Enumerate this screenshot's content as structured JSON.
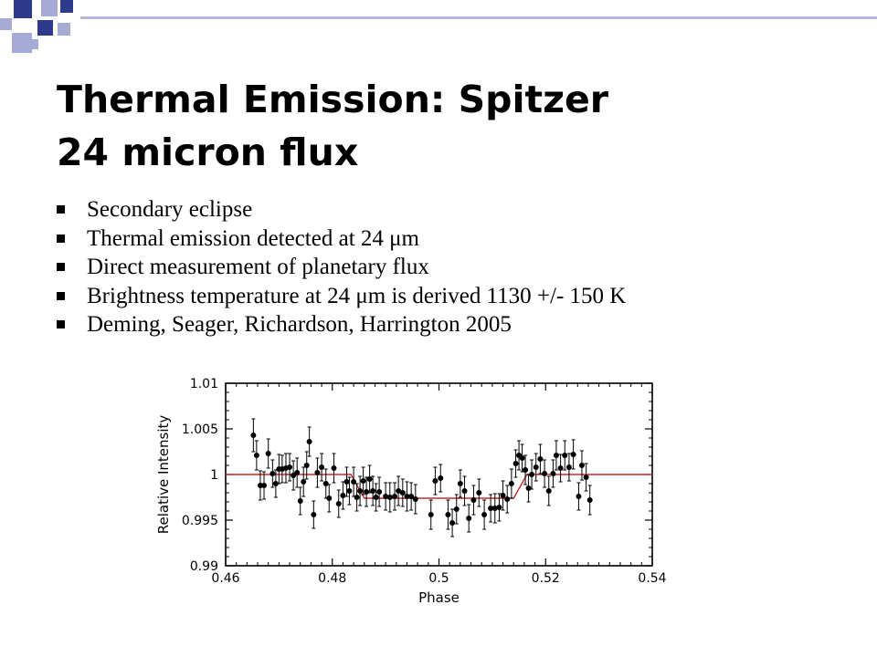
{
  "theme": {
    "accent": "#2e3a8c",
    "accent_light": "#a6abd6",
    "rule_color": "#b3b8dc",
    "fit_color": "#cc2b2b"
  },
  "slide": {
    "title_line1": "Thermal Emission: Spitzer",
    "title_line2": "24 micron flux",
    "bullets": [
      "Secondary eclipse",
      "Thermal emission detected at 24 μm",
      "Direct measurement of planetary flux",
      "Brightness temperature at 24 μm is derived 1130 +/- 150 K",
      "Deming, Seager, Richardson, Harrington 2005"
    ]
  },
  "chart_data": {
    "type": "scatter",
    "title": "",
    "xlabel": "Phase",
    "ylabel": "Relative Intensity",
    "xlim": [
      0.46,
      0.54
    ],
    "ylim": [
      0.99,
      1.01
    ],
    "x_ticks": [
      "0.46",
      "0.48",
      "0.5",
      "0.52",
      "0.54"
    ],
    "y_ticks": [
      "0.99",
      "0.995",
      "1",
      "1.005",
      "1.01"
    ],
    "grid": false,
    "points": [
      {
        "x": 0.4652,
        "y": 1.0043,
        "err": 0.0018
      },
      {
        "x": 0.4658,
        "y": 1.0021,
        "err": 0.0016
      },
      {
        "x": 0.4665,
        "y": 0.9988,
        "err": 0.0016
      },
      {
        "x": 0.4672,
        "y": 0.9988,
        "err": 0.0015
      },
      {
        "x": 0.468,
        "y": 1.0023,
        "err": 0.0016
      },
      {
        "x": 0.4688,
        "y": 1.0001,
        "err": 0.0015
      },
      {
        "x": 0.4694,
        "y": 0.999,
        "err": 0.0015
      },
      {
        "x": 0.47,
        "y": 1.0006,
        "err": 0.0016
      },
      {
        "x": 0.4706,
        "y": 1.0006,
        "err": 0.0015
      },
      {
        "x": 0.4713,
        "y": 1.0007,
        "err": 0.0016
      },
      {
        "x": 0.472,
        "y": 1.0008,
        "err": 0.0015
      },
      {
        "x": 0.4727,
        "y": 0.9999,
        "err": 0.0016
      },
      {
        "x": 0.4734,
        "y": 1.0002,
        "err": 0.0016
      },
      {
        "x": 0.474,
        "y": 0.9971,
        "err": 0.0015
      },
      {
        "x": 0.4746,
        "y": 0.9992,
        "err": 0.0016
      },
      {
        "x": 0.4752,
        "y": 1.001,
        "err": 0.0015
      },
      {
        "x": 0.4757,
        "y": 1.0036,
        "err": 0.0016
      },
      {
        "x": 0.4765,
        "y": 0.9956,
        "err": 0.0015
      },
      {
        "x": 0.4772,
        "y": 1.0002,
        "err": 0.0016
      },
      {
        "x": 0.478,
        "y": 1.0008,
        "err": 0.0015
      },
      {
        "x": 0.4788,
        "y": 0.999,
        "err": 0.0016
      },
      {
        "x": 0.4794,
        "y": 0.9974,
        "err": 0.0015
      },
      {
        "x": 0.4803,
        "y": 1.0007,
        "err": 0.0016
      },
      {
        "x": 0.4812,
        "y": 0.9968,
        "err": 0.0015
      },
      {
        "x": 0.482,
        "y": 0.9977,
        "err": 0.0015
      },
      {
        "x": 0.4827,
        "y": 0.9992,
        "err": 0.0016
      },
      {
        "x": 0.4832,
        "y": 0.9982,
        "err": 0.0015
      },
      {
        "x": 0.484,
        "y": 0.9992,
        "err": 0.0016
      },
      {
        "x": 0.4846,
        "y": 0.9975,
        "err": 0.0015
      },
      {
        "x": 0.4852,
        "y": 0.9982,
        "err": 0.0016
      },
      {
        "x": 0.4858,
        "y": 0.9993,
        "err": 0.0015
      },
      {
        "x": 0.4864,
        "y": 0.9981,
        "err": 0.0016
      },
      {
        "x": 0.487,
        "y": 0.9995,
        "err": 0.0015
      },
      {
        "x": 0.4876,
        "y": 0.9982,
        "err": 0.0016
      },
      {
        "x": 0.4882,
        "y": 0.9975,
        "err": 0.0015
      },
      {
        "x": 0.4888,
        "y": 0.9981,
        "err": 0.0016
      },
      {
        "x": 0.49,
        "y": 0.9976,
        "err": 0.0015
      },
      {
        "x": 0.4908,
        "y": 0.9975,
        "err": 0.0016
      },
      {
        "x": 0.4917,
        "y": 0.9976,
        "err": 0.0015
      },
      {
        "x": 0.4924,
        "y": 0.9982,
        "err": 0.0016
      },
      {
        "x": 0.4932,
        "y": 0.998,
        "err": 0.0015
      },
      {
        "x": 0.494,
        "y": 0.9976,
        "err": 0.0016
      },
      {
        "x": 0.4948,
        "y": 0.9976,
        "err": 0.0015
      },
      {
        "x": 0.4956,
        "y": 0.9973,
        "err": 0.0016
      },
      {
        "x": 0.4985,
        "y": 0.9956,
        "err": 0.0016
      },
      {
        "x": 0.4993,
        "y": 0.9993,
        "err": 0.0015
      },
      {
        "x": 0.5003,
        "y": 0.9996,
        "err": 0.0015
      },
      {
        "x": 0.5017,
        "y": 0.9956,
        "err": 0.0016
      },
      {
        "x": 0.5025,
        "y": 0.9947,
        "err": 0.0015
      },
      {
        "x": 0.5033,
        "y": 0.9962,
        "err": 0.0016
      },
      {
        "x": 0.504,
        "y": 0.999,
        "err": 0.0015
      },
      {
        "x": 0.5048,
        "y": 0.9982,
        "err": 0.0016
      },
      {
        "x": 0.5056,
        "y": 0.9952,
        "err": 0.0015
      },
      {
        "x": 0.5065,
        "y": 0.9972,
        "err": 0.0016
      },
      {
        "x": 0.5075,
        "y": 0.998,
        "err": 0.0015
      },
      {
        "x": 0.5085,
        "y": 0.9956,
        "err": 0.0016
      },
      {
        "x": 0.5097,
        "y": 0.9963,
        "err": 0.0015
      },
      {
        "x": 0.5105,
        "y": 0.9963,
        "err": 0.0016
      },
      {
        "x": 0.5113,
        "y": 0.9964,
        "err": 0.0015
      },
      {
        "x": 0.512,
        "y": 0.9977,
        "err": 0.0016
      },
      {
        "x": 0.5128,
        "y": 0.9973,
        "err": 0.0015
      },
      {
        "x": 0.5136,
        "y": 0.999,
        "err": 0.0016
      },
      {
        "x": 0.5144,
        "y": 1.0012,
        "err": 0.0015
      },
      {
        "x": 0.515,
        "y": 1.0021,
        "err": 0.0016
      },
      {
        "x": 0.5156,
        "y": 1.0018,
        "err": 0.0015
      },
      {
        "x": 0.5162,
        "y": 1.0005,
        "err": 0.0016
      },
      {
        "x": 0.5168,
        "y": 0.9985,
        "err": 0.0015
      },
      {
        "x": 0.5174,
        "y": 1.0,
        "err": 0.0016
      },
      {
        "x": 0.5182,
        "y": 1.0008,
        "err": 0.0015
      },
      {
        "x": 0.519,
        "y": 1.0017,
        "err": 0.0016
      },
      {
        "x": 0.5198,
        "y": 1.0001,
        "err": 0.0015
      },
      {
        "x": 0.5206,
        "y": 0.9982,
        "err": 0.0016
      },
      {
        "x": 0.5214,
        "y": 1.0001,
        "err": 0.0015
      },
      {
        "x": 0.522,
        "y": 1.0021,
        "err": 0.0016
      },
      {
        "x": 0.5228,
        "y": 1.0007,
        "err": 0.0015
      },
      {
        "x": 0.5236,
        "y": 1.0021,
        "err": 0.0016
      },
      {
        "x": 0.5244,
        "y": 1.0008,
        "err": 0.0015
      },
      {
        "x": 0.5252,
        "y": 1.0022,
        "err": 0.0016
      },
      {
        "x": 0.5262,
        "y": 0.9976,
        "err": 0.0015
      },
      {
        "x": 0.5268,
        "y": 1.001,
        "err": 0.0016
      },
      {
        "x": 0.5276,
        "y": 0.9997,
        "err": 0.0015
      },
      {
        "x": 0.5283,
        "y": 0.9972,
        "err": 0.0016
      }
    ],
    "model": {
      "x": [
        0.46,
        0.4835,
        0.486,
        0.514,
        0.5165,
        0.54
      ],
      "y": [
        1.0,
        1.0,
        0.9974,
        0.9974,
        1.0,
        1.0
      ]
    }
  }
}
